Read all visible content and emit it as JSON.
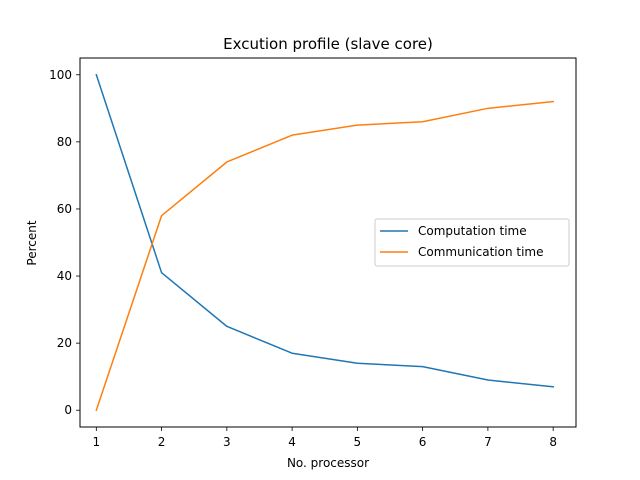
{
  "chart_data": {
    "type": "line",
    "title": "Excution profile (slave core)",
    "xlabel": "No. processor",
    "ylabel": "Percent",
    "x": [
      1,
      2,
      3,
      4,
      5,
      6,
      7,
      8
    ],
    "xlim": [
      0.75,
      8.35
    ],
    "ylim": [
      -5,
      105
    ],
    "xticks": [
      1,
      2,
      3,
      4,
      5,
      6,
      7,
      8
    ],
    "yticks": [
      0,
      20,
      40,
      60,
      80,
      100
    ],
    "grid": false,
    "legend_position": "center-right",
    "series": [
      {
        "name": "Computation time",
        "color": "#1f77b4",
        "values": [
          100,
          41,
          25,
          17,
          14,
          13,
          9,
          7
        ]
      },
      {
        "name": "Communication time",
        "color": "#ff7f0e",
        "values": [
          0,
          58,
          74,
          82,
          85,
          86,
          90,
          92
        ]
      }
    ]
  }
}
